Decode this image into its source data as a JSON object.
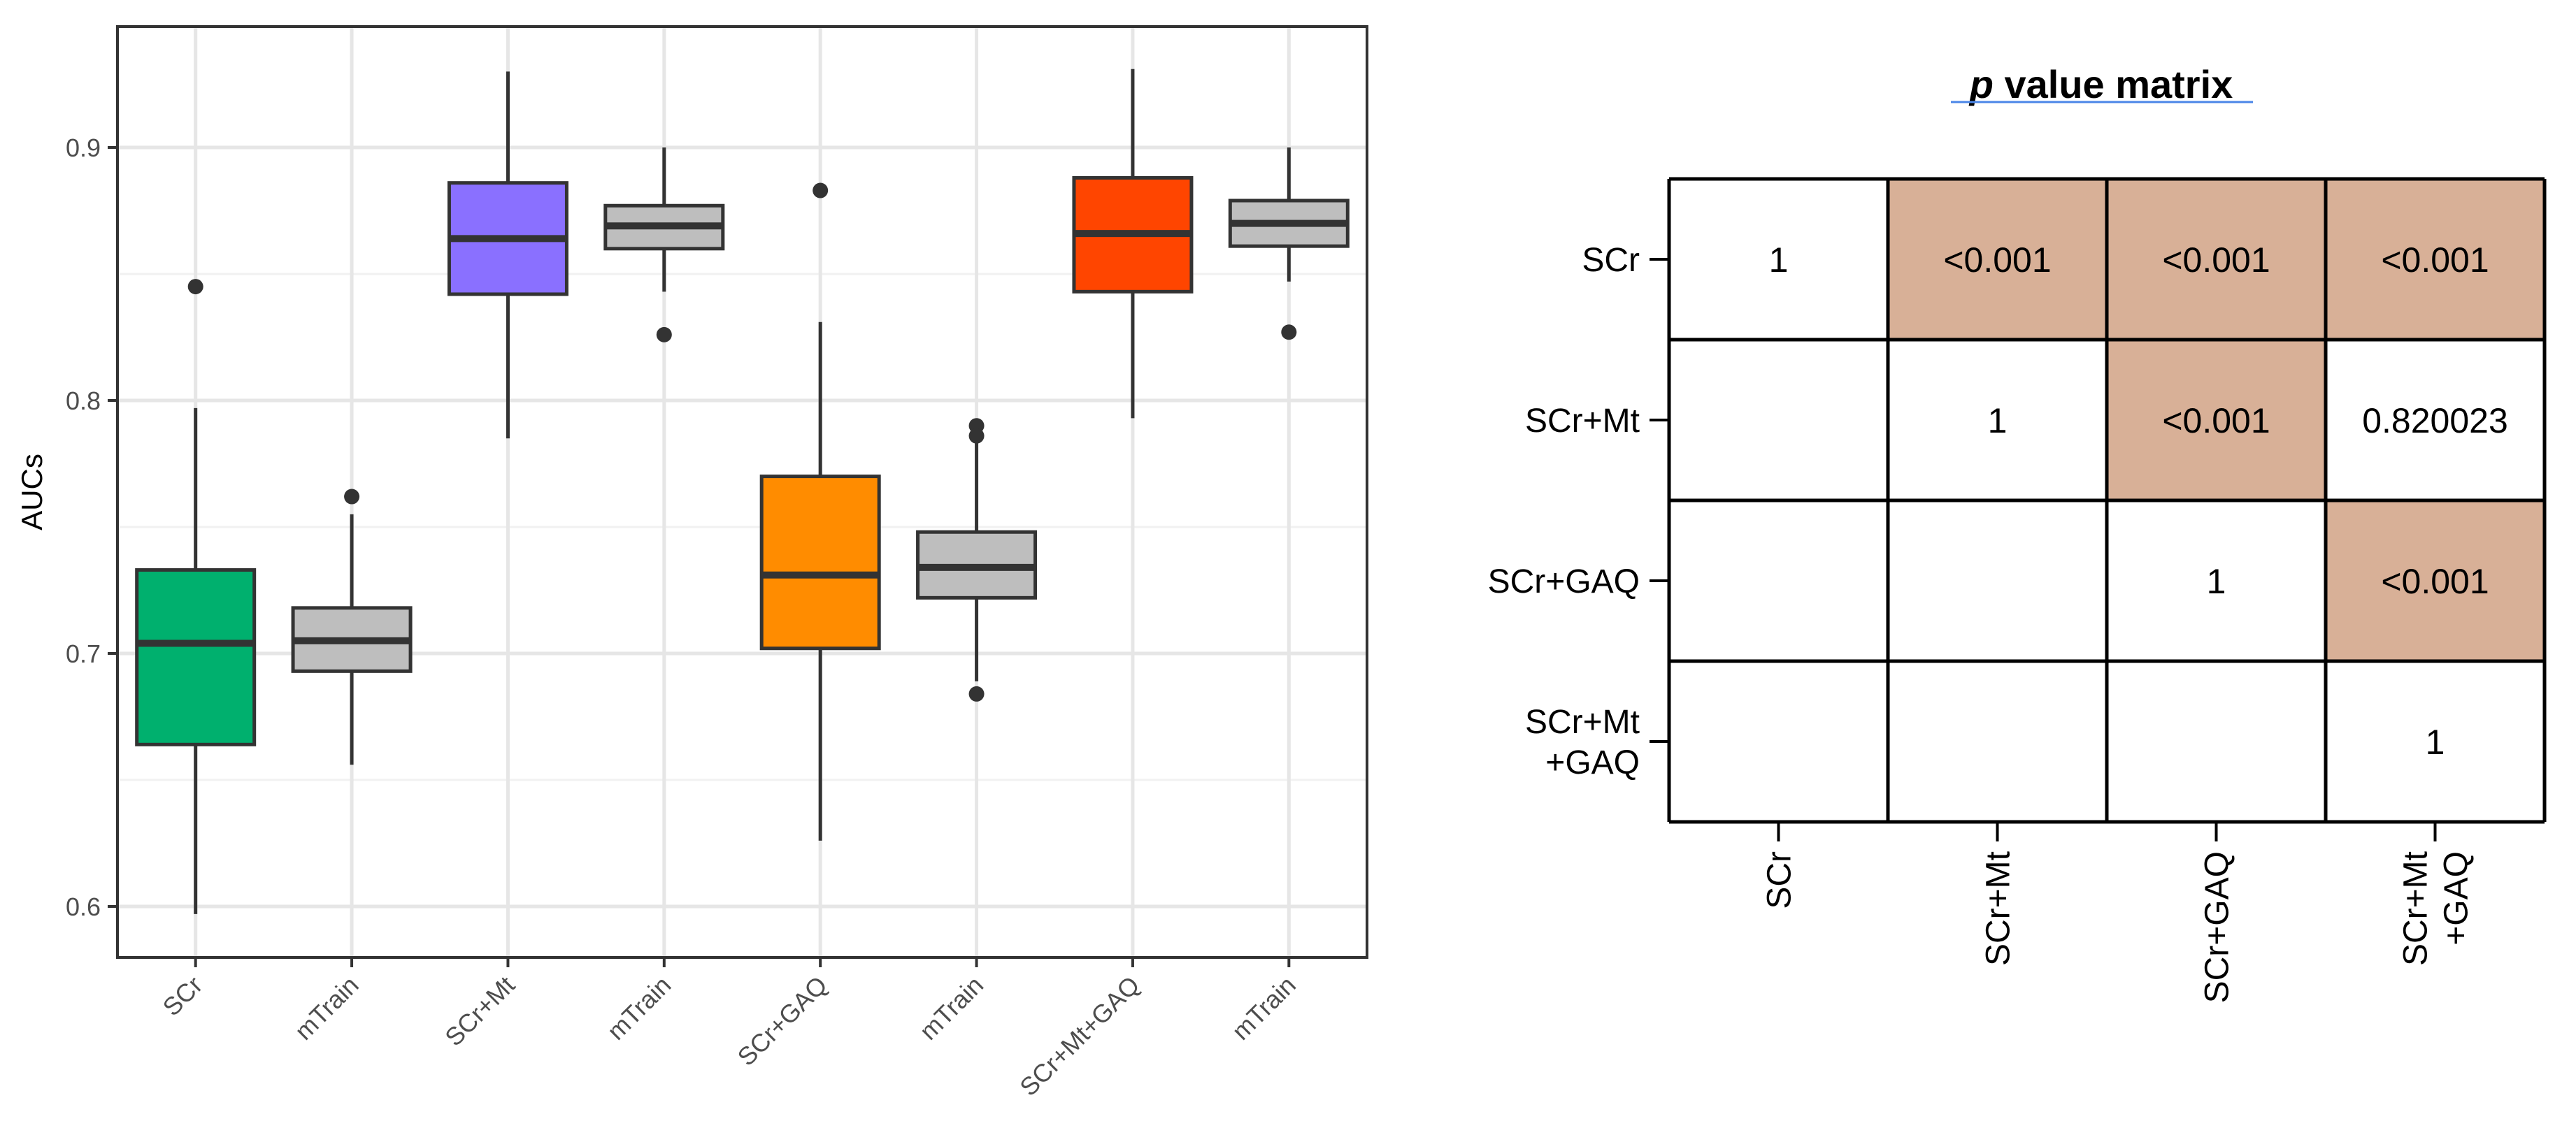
{
  "chart_data": [
    {
      "type": "boxplot",
      "title": "",
      "xlabel": "",
      "ylabel": "AUCs",
      "ylim": [
        0.58,
        0.95
      ],
      "yticks": [
        0.6,
        0.7,
        0.8,
        0.9
      ],
      "ytick_labels": [
        "0.6",
        "0.7",
        "0.8",
        "0.9"
      ],
      "grid": true,
      "categories": [
        "SCr",
        "mTrain",
        "SCr+Mt",
        "mTrain",
        "SCr+GAQ",
        "mTrain",
        "SCr+Mt+GAQ",
        "mTrain"
      ],
      "boxes": [
        {
          "label": "SCr",
          "color": "#00b06e",
          "whisker_low": 0.597,
          "q1": 0.664,
          "median": 0.704,
          "q3": 0.733,
          "whisker_high": 0.797,
          "outliers": [
            0.845
          ]
        },
        {
          "label": "mTrain",
          "color": "#bebebe",
          "whisker_low": 0.656,
          "q1": 0.693,
          "median": 0.705,
          "q3": 0.718,
          "whisker_high": 0.755,
          "outliers": [
            0.762
          ]
        },
        {
          "label": "SCr+Mt",
          "color": "#8a70ff",
          "whisker_low": 0.785,
          "q1": 0.842,
          "median": 0.864,
          "q3": 0.886,
          "whisker_high": 0.93,
          "outliers": []
        },
        {
          "label": "mTrain",
          "color": "#bebebe",
          "whisker_low": 0.843,
          "q1": 0.86,
          "median": 0.869,
          "q3": 0.877,
          "whisker_high": 0.9,
          "outliers": [
            0.826
          ]
        },
        {
          "label": "SCr+GAQ",
          "color": "#ff8c00",
          "whisker_low": 0.626,
          "q1": 0.702,
          "median": 0.731,
          "q3": 0.77,
          "whisker_high": 0.831,
          "outliers": [
            0.883
          ]
        },
        {
          "label": "mTrain",
          "color": "#bebebe",
          "whisker_low": 0.689,
          "q1": 0.722,
          "median": 0.734,
          "q3": 0.748,
          "whisker_high": 0.783,
          "outliers": [
            0.79,
            0.786,
            0.684
          ]
        },
        {
          "label": "SCr+Mt+GAQ",
          "color": "#ff4500",
          "whisker_low": 0.793,
          "q1": 0.843,
          "median": 0.866,
          "q3": 0.888,
          "whisker_high": 0.931,
          "outliers": []
        },
        {
          "label": "mTrain",
          "color": "#bebebe",
          "whisker_low": 0.847,
          "q1": 0.861,
          "median": 0.87,
          "q3": 0.879,
          "whisker_high": 0.9,
          "outliers": [
            0.827
          ]
        }
      ]
    },
    {
      "type": "table",
      "title_italic": "p",
      "title_rest": " value matrix",
      "row_labels": [
        [
          "SCr"
        ],
        [
          "SCr+Mt"
        ],
        [
          "SCr+GAQ"
        ],
        [
          "SCr+Mt",
          "+GAQ"
        ]
      ],
      "col_labels": [
        [
          "SCr"
        ],
        [
          "SCr+Mt"
        ],
        [
          "SCr+GAQ"
        ],
        [
          "SCr+Mt",
          "+GAQ"
        ]
      ],
      "cells": [
        [
          "1",
          "<0.001",
          "<0.001",
          "<0.001"
        ],
        [
          "",
          "1",
          "<0.001",
          "0.820023"
        ],
        [
          "",
          "",
          "1",
          "<0.001"
        ],
        [
          "",
          "",
          "",
          "1"
        ]
      ],
      "highlight": [
        [
          false,
          true,
          true,
          true
        ],
        [
          false,
          false,
          true,
          false
        ],
        [
          false,
          false,
          false,
          true
        ],
        [
          false,
          false,
          false,
          false
        ]
      ],
      "highlight_color": "#d8b097"
    }
  ]
}
